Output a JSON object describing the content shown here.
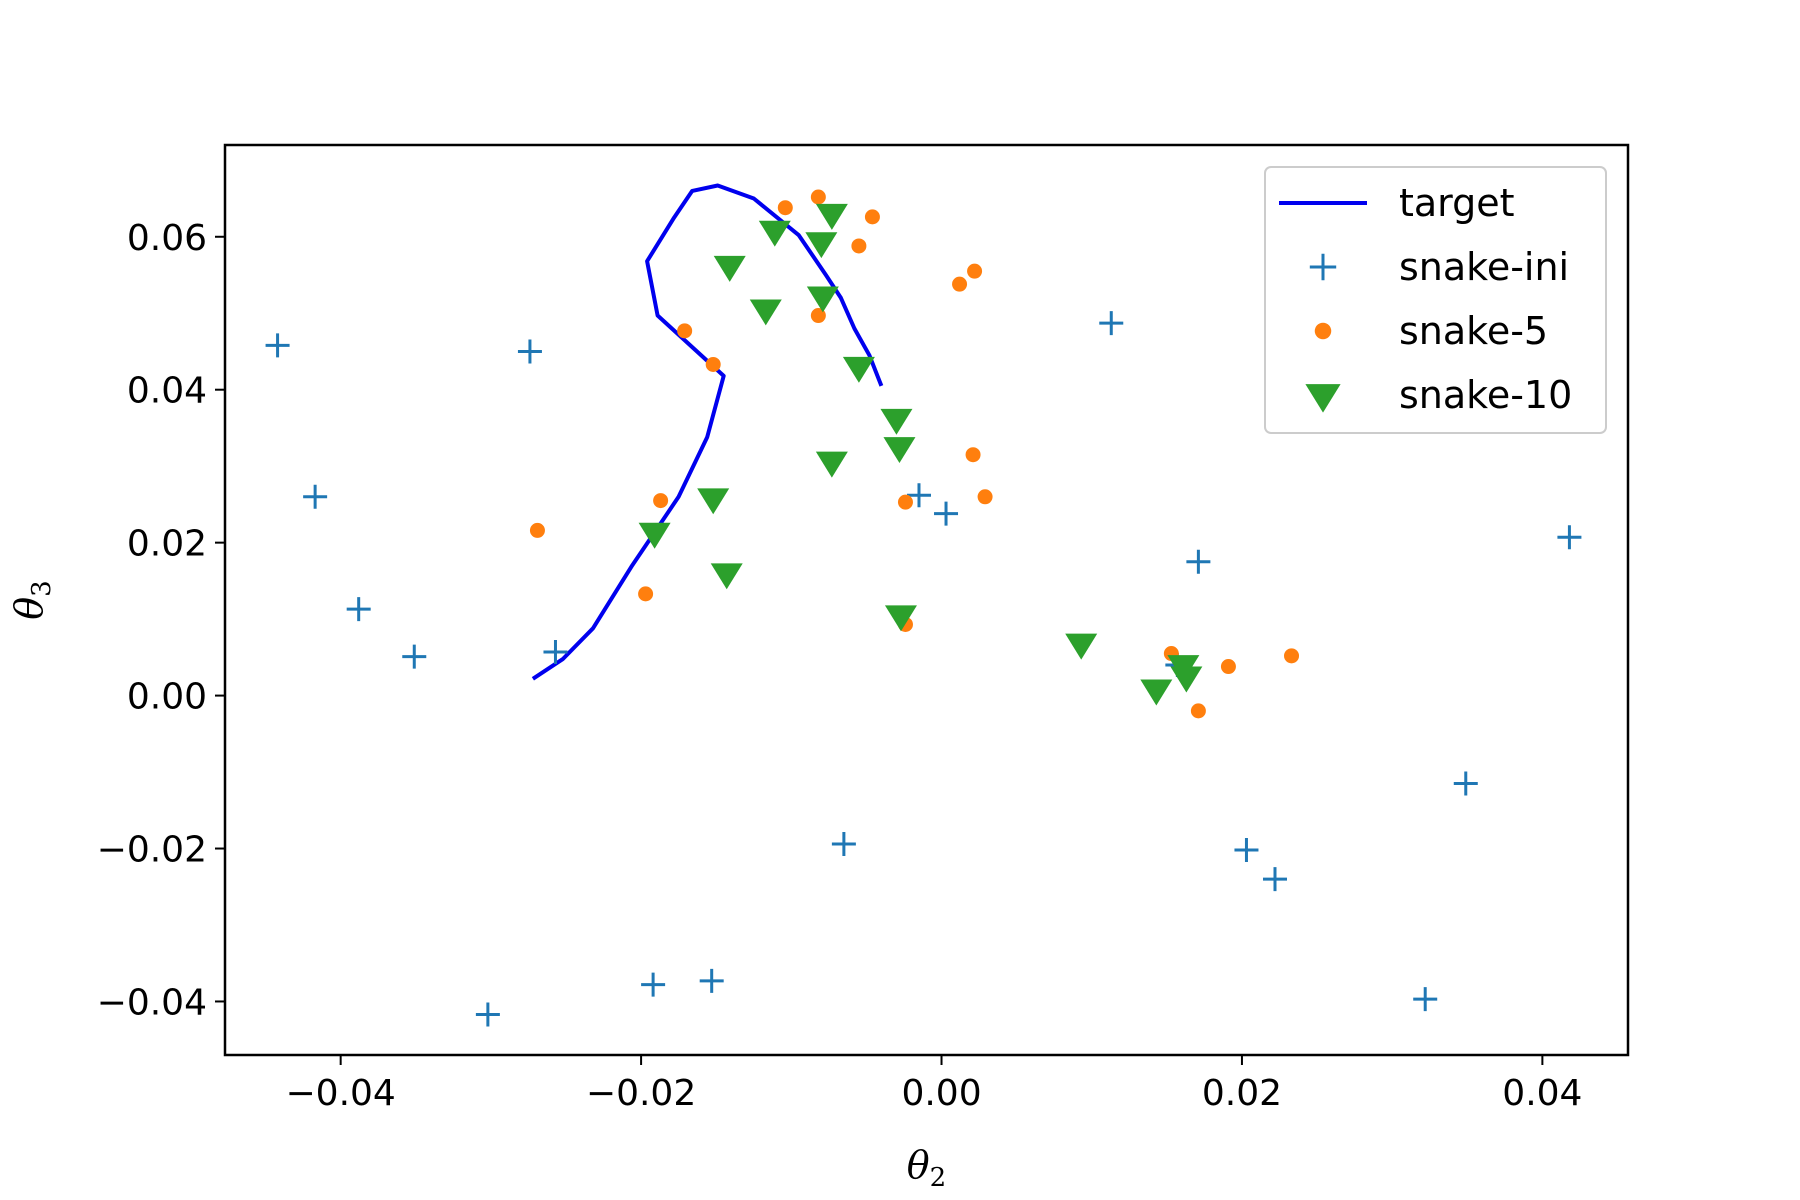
{
  "chart_data": {
    "type": "scatter",
    "xlabel": "θ",
    "xlabel_sub": "2",
    "ylabel": "θ",
    "ylabel_sub": "3",
    "xlim": [
      -0.0477,
      0.0457
    ],
    "ylim": [
      -0.047,
      0.072
    ],
    "x_ticks": [
      -0.04,
      -0.02,
      0.0,
      0.02,
      0.04
    ],
    "x_tick_labels": [
      "−0.04",
      "−0.02",
      "0.00",
      "0.02",
      "0.04"
    ],
    "y_ticks": [
      -0.04,
      -0.02,
      0.0,
      0.02,
      0.04,
      0.06
    ],
    "y_tick_labels": [
      "−0.04",
      "−0.02",
      "0.00",
      "0.02",
      "0.04",
      "0.06"
    ],
    "grid": false,
    "legend_position": "top-right",
    "series": [
      {
        "name": "target",
        "kind": "line",
        "color": "#0000ee",
        "x": [
          -0.0272,
          -0.0252,
          -0.0232,
          -0.0206,
          -0.0175,
          -0.0156,
          -0.0145,
          -0.0189,
          -0.0196,
          -0.0178,
          -0.0166,
          -0.0149,
          -0.0125,
          -0.0095,
          -0.0077,
          -0.0067,
          -0.0058,
          -0.0048,
          -0.004
        ],
        "y": [
          0.0022,
          0.0048,
          0.0088,
          0.017,
          0.026,
          0.0338,
          0.0418,
          0.0497,
          0.0568,
          0.0625,
          0.066,
          0.0667,
          0.065,
          0.0602,
          0.055,
          0.052,
          0.048,
          0.0445,
          0.0405
        ]
      },
      {
        "name": "snake-ini",
        "kind": "plus",
        "color": "#1f77b4",
        "x": [
          -0.0442,
          -0.0417,
          -0.0388,
          -0.0351,
          -0.0302,
          -0.0274,
          -0.0257,
          -0.0192,
          -0.0153,
          -0.0065,
          -0.0015,
          0.0003,
          0.0113,
          0.0157,
          0.0171,
          0.0203,
          0.0222,
          0.0322,
          0.0349,
          0.0418
        ],
        "y": [
          0.0458,
          0.026,
          0.0113,
          0.0051,
          -0.0417,
          0.045,
          0.0057,
          -0.0378,
          -0.0373,
          -0.0194,
          0.0262,
          0.0238,
          0.0487,
          0.004,
          0.0175,
          -0.0202,
          -0.024,
          -0.0397,
          -0.0115,
          0.0207
        ]
      },
      {
        "name": "snake-5",
        "kind": "dot",
        "color": "#ff7f0e",
        "x": [
          -0.0269,
          -0.0197,
          -0.0187,
          -0.0171,
          -0.0152,
          -0.0104,
          -0.0082,
          -0.0082,
          -0.0055,
          -0.0046,
          -0.0024,
          -0.0024,
          0.0012,
          0.0021,
          0.0022,
          0.0029,
          0.0153,
          0.0171,
          0.0191,
          0.0233
        ],
        "y": [
          0.0216,
          0.0133,
          0.0255,
          0.0477,
          0.0433,
          0.0638,
          0.0652,
          0.0497,
          0.0588,
          0.0626,
          0.0253,
          0.0093,
          0.0538,
          0.0315,
          0.0555,
          0.026,
          0.0055,
          -0.002,
          0.0038,
          0.0052
        ]
      },
      {
        "name": "snake-10",
        "kind": "triangle-down",
        "color": "#2ca02c",
        "x": [
          -0.0191,
          -0.0152,
          -0.0143,
          -0.0141,
          -0.0117,
          -0.0111,
          -0.008,
          -0.0079,
          -0.0073,
          -0.0073,
          -0.0055,
          -0.003,
          -0.0028,
          -0.0027,
          0.0093,
          0.0143,
          0.0161,
          0.0163
        ],
        "y": [
          0.0213,
          0.0258,
          0.016,
          0.0562,
          0.0505,
          0.0608,
          0.0593,
          0.0522,
          0.063,
          0.0306,
          0.043,
          0.0362,
          0.0325,
          0.0105,
          0.0068,
          0.0008,
          0.004,
          0.0025
        ]
      }
    ]
  }
}
